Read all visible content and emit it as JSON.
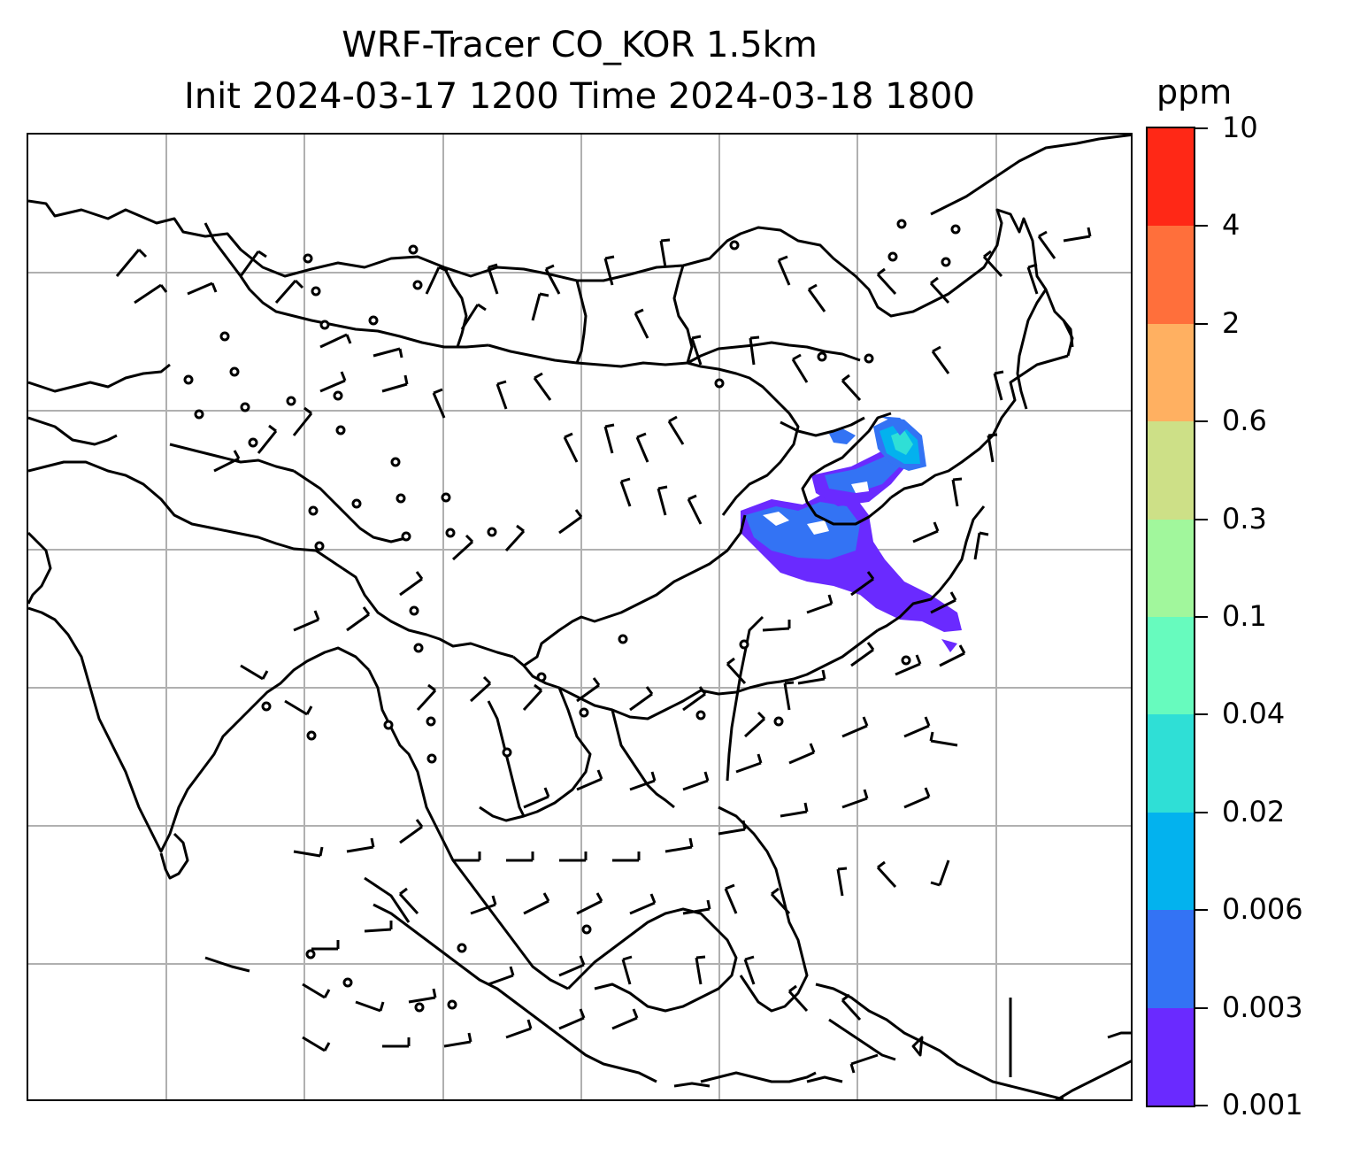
{
  "title": {
    "line1": "WRF-Tracer CO_KOR 1.5km",
    "line2": "Init 2024-03-17 1200 Time 2024-03-18 1800"
  },
  "colorbar": {
    "unit": "ppm",
    "levels": [
      "0.001",
      "0.003",
      "0.006",
      "0.02",
      "0.04",
      "0.1",
      "0.3",
      "0.6",
      "2",
      "4",
      "10"
    ],
    "colors": [
      "#6a2aff",
      "#3373f4",
      "#03b2ee",
      "#2fdfd6",
      "#67fbbe",
      "#a1f79c",
      "#cde087",
      "#ffb061",
      "#ff6f3b",
      "#ff2816"
    ]
  },
  "map": {
    "variable": "CO tracer concentration with wind barbs",
    "gridlines": true
  }
}
